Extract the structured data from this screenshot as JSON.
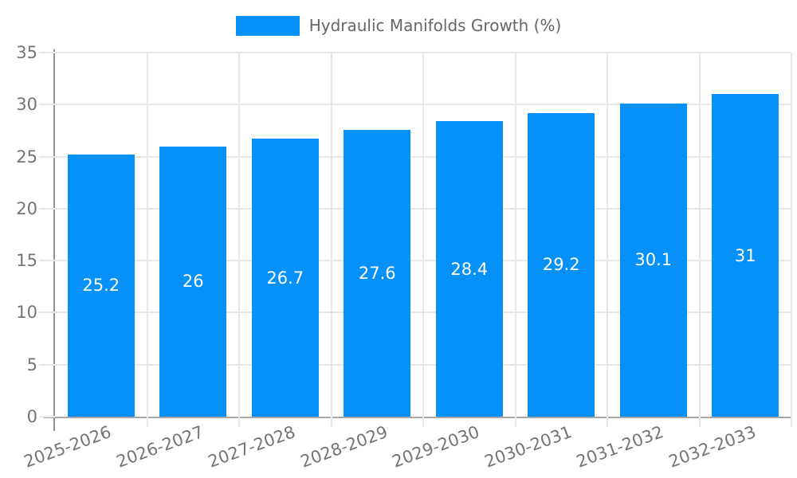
{
  "legend": {
    "items": [
      {
        "label": "Hydraulic Manifolds Growth (%)",
        "color": "#0591f8"
      }
    ]
  },
  "chart_data": {
    "type": "bar",
    "title": "Hydraulic Manifolds Growth (%)",
    "categories": [
      "2025-2026",
      "2026-2027",
      "2027-2028",
      "2028-2029",
      "2029-2030",
      "2030-2031",
      "2031-2032",
      "2032-2033"
    ],
    "series": [
      {
        "name": "Hydraulic Manifolds Growth (%)",
        "values": [
          25.2,
          26,
          26.7,
          27.6,
          28.4,
          29.2,
          30.1,
          31
        ],
        "color": "#0591f8"
      }
    ],
    "value_labels": [
      "25.2",
      "26",
      "26.7",
      "27.6",
      "28.4",
      "29.2",
      "30.1",
      "31"
    ],
    "xlabel": "",
    "ylabel": "",
    "ylim": [
      0,
      35
    ],
    "yticks": [
      0,
      5,
      10,
      15,
      20,
      25,
      30,
      35
    ],
    "grid": true,
    "legend_position": "top-center",
    "x_tick_rotation_deg": -20
  },
  "colors": {
    "bar": "#0591f8",
    "grid": "#e7e7e7",
    "axis_line": "#9b9b9b",
    "tick_label": "#757575",
    "legend_text": "#666666",
    "value_label": "#ffffff",
    "background": "#ffffff"
  }
}
